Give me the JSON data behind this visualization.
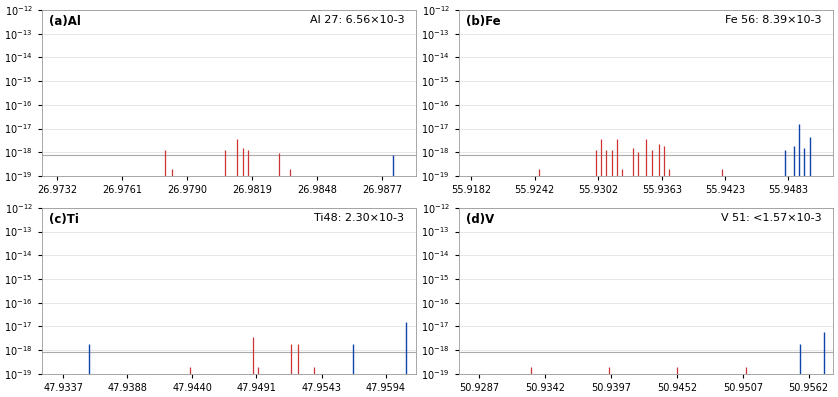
{
  "panels": [
    {
      "label": "(a)Al",
      "annotation": "Al 27: 6.56×10$^{-3}$",
      "annotation_plain": "Al 27: 6.56×10",
      "annotation_exp": "-3",
      "xlim": [
        26.9725,
        26.9892
      ],
      "xticks": [
        26.9732,
        26.9761,
        26.979,
        26.9819,
        26.9848,
        26.9877
      ],
      "xtick_labels": [
        "26.9732",
        "26.9761",
        "26.9790",
        "26.9819",
        "26.9848",
        "26.9877"
      ],
      "red_lines": [
        [
          26.978,
          1.3e-18
        ],
        [
          26.9783,
          1.9e-19
        ],
        [
          26.9807,
          1.3e-18
        ],
        [
          26.9812,
          3.5e-18
        ],
        [
          26.9815,
          1.5e-18
        ],
        [
          26.9817,
          1.3e-18
        ],
        [
          26.9831,
          9e-19
        ],
        [
          26.9836,
          1.9e-19
        ]
      ],
      "blue_lines": [
        [
          26.9882,
          8e-19
        ]
      ]
    },
    {
      "label": "(b)Fe",
      "annotation_plain": "Fe 56: 8.39×10",
      "annotation_exp": "-3",
      "xlim": [
        55.917,
        55.9525
      ],
      "xticks": [
        55.9182,
        55.9242,
        55.9302,
        55.9363,
        55.9423,
        55.9483
      ],
      "xtick_labels": [
        "55.9182",
        "55.9242",
        "55.9302",
        "55.9363",
        "55.9423",
        "55.9483"
      ],
      "red_lines": [
        [
          55.9246,
          1.9e-19
        ],
        [
          55.93,
          1.2e-18
        ],
        [
          55.9305,
          3.5e-18
        ],
        [
          55.931,
          1.3e-18
        ],
        [
          55.9315,
          1.2e-18
        ],
        [
          55.932,
          3.5e-18
        ],
        [
          55.9325,
          1.9e-19
        ],
        [
          55.9335,
          1.5e-18
        ],
        [
          55.934,
          1e-18
        ],
        [
          55.9348,
          3.8e-18
        ],
        [
          55.9353,
          1.3e-18
        ],
        [
          55.936,
          2.2e-18
        ],
        [
          55.9365,
          1.8e-18
        ],
        [
          55.937,
          1.9e-19
        ],
        [
          55.942,
          1.9e-19
        ]
      ],
      "blue_lines": [
        [
          55.948,
          1.2e-18
        ],
        [
          55.9488,
          1.8e-18
        ],
        [
          55.9493,
          1.5e-17
        ],
        [
          55.9498,
          1.5e-18
        ],
        [
          55.9503,
          4.5e-18
        ]
      ]
    },
    {
      "label": "(c)Ti",
      "annotation_plain": "Ti48: 2.30×10",
      "annotation_exp": "-3",
      "xlim": [
        47.932,
        47.9618
      ],
      "xticks": [
        47.9337,
        47.9388,
        47.944,
        47.9491,
        47.9543,
        47.9594
      ],
      "xtick_labels": [
        "47.9337",
        "47.9388",
        "47.9440",
        "47.9491",
        "47.9543",
        "47.9594"
      ],
      "red_lines": [
        [
          47.9438,
          1.9e-19
        ],
        [
          47.9488,
          3.5e-18
        ],
        [
          47.9492,
          1.9e-19
        ],
        [
          47.9519,
          1.8e-18
        ],
        [
          47.9524,
          1.8e-18
        ],
        [
          47.9537,
          1.9e-19
        ]
      ],
      "blue_lines": [
        [
          47.9358,
          1.8e-18
        ],
        [
          47.9568,
          1.8e-18
        ],
        [
          47.961,
          1.5e-17
        ]
      ]
    },
    {
      "label": "(d)V",
      "annotation_plain": "V 51: <1.57×10",
      "annotation_exp": "-3",
      "xlim": [
        50.927,
        50.9582
      ],
      "xticks": [
        50.9287,
        50.9342,
        50.9397,
        50.9452,
        50.9507,
        50.9562
      ],
      "xtick_labels": [
        "50.9287",
        "50.9342",
        "50.9397",
        "50.9452",
        "50.9507",
        "50.9562"
      ],
      "red_lines": [
        [
          50.933,
          1.9e-19
        ],
        [
          50.9395,
          1.9e-19
        ],
        [
          50.9452,
          1.9e-19
        ],
        [
          50.951,
          1.9e-19
        ]
      ],
      "blue_lines": [
        [
          50.9555,
          1.8e-18
        ],
        [
          50.9575,
          6e-18
        ]
      ]
    }
  ],
  "ylim": [
    1e-19,
    1e-12
  ],
  "yticks": [
    1e-19,
    1e-18,
    1e-17,
    1e-16,
    1e-15,
    1e-14,
    1e-13,
    1e-12
  ],
  "hline_y": 8e-19,
  "hline_color": "#aaaaaa",
  "red_color": "#cc3333",
  "blue_color": "#1144aa",
  "bg_color": "#ffffff",
  "grid_color": "#dddddd"
}
